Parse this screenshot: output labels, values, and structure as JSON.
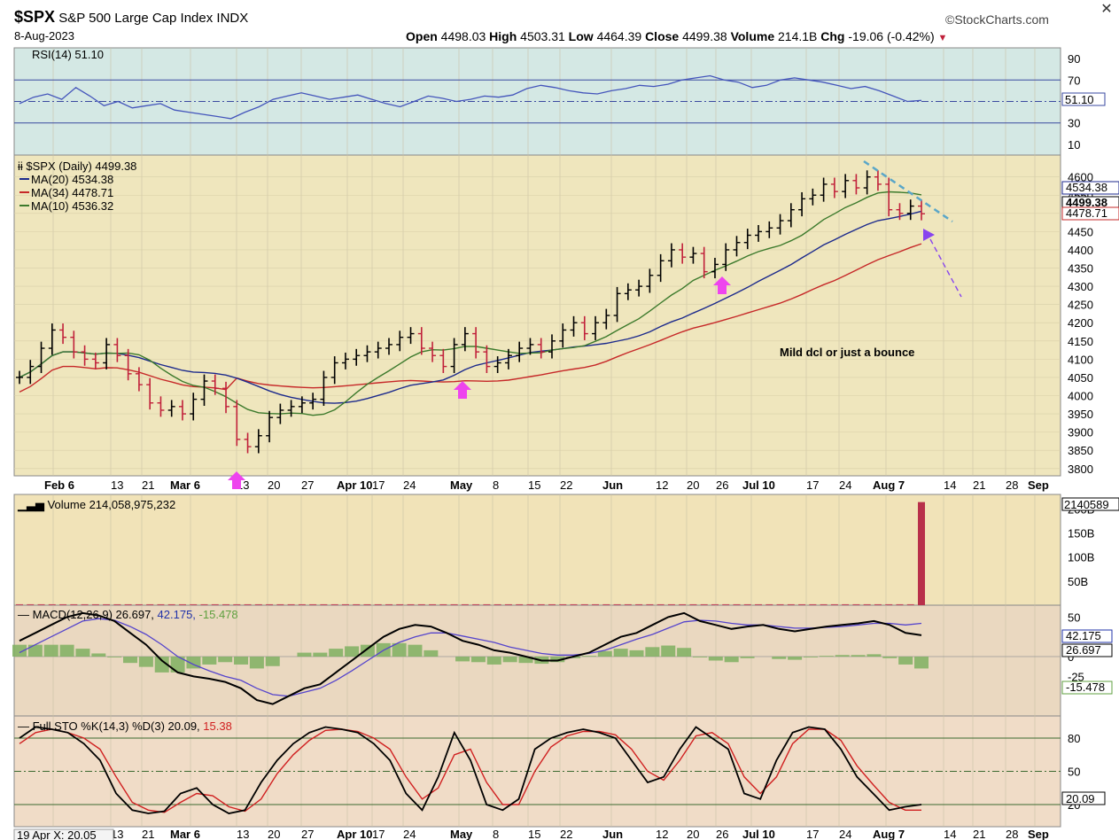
{
  "header": {
    "symbol": "$SPX",
    "name": "S&P 500 Large Cap Index",
    "exchange": "INDX",
    "date": "8-Aug-2023",
    "brand": "©StockCharts.com",
    "open_label": "Open",
    "open": "4498.03",
    "high_label": "High",
    "high": "4503.31",
    "low_label": "Low",
    "low": "4464.39",
    "close_label": "Close",
    "close": "4499.38",
    "volume_label": "Volume",
    "volume": "214.1B",
    "chg_label": "Chg",
    "chg": "-19.06 (-0.42%)",
    "close_icon": "close-circle-icon"
  },
  "colors": {
    "up": "#000000",
    "down": "#c0203a",
    "ma20": "#1c2a8c",
    "ma34": "#c62828",
    "ma10": "#3c7a2c",
    "rsi_bg": "#d4e8e4",
    "price_bg": "#efe6bd",
    "volume_bg": "#f1e3b8",
    "macd_bg": "#ead8c0",
    "sto_bg": "#f0dcc7",
    "annotation": "#5aa6c8",
    "arrow_magenta": "#ee44ee",
    "arrow_purple": "#8844ee"
  },
  "chart_data": [
    {
      "type": "line",
      "panel": "RSI",
      "title": "RSI(14) 51.10",
      "yticks": [
        "90",
        "70",
        "50",
        "30",
        "10"
      ],
      "ylim": [
        0,
        100
      ],
      "reference_lines": [
        70,
        30
      ],
      "last_value_label": "51.10",
      "series": [
        {
          "name": "RSI(14)",
          "values": [
            48,
            54,
            57,
            52,
            63,
            55,
            46,
            50,
            44,
            46,
            48,
            42,
            40,
            38,
            36,
            34,
            40,
            45,
            52,
            55,
            58,
            55,
            52,
            54,
            56,
            52,
            48,
            45,
            50,
            55,
            53,
            50,
            52,
            55,
            54,
            56,
            62,
            65,
            63,
            60,
            58,
            57,
            60,
            62,
            65,
            64,
            66,
            70,
            72,
            74,
            70,
            68,
            63,
            65,
            70,
            72,
            70,
            68,
            65,
            62,
            64,
            60,
            55,
            50,
            51
          ]
        }
      ]
    },
    {
      "type": "candlestick",
      "panel": "Price",
      "title": "$SPX (Daily) 4499.38",
      "legend": [
        "MA(20) 4534.38",
        "MA(34) 4478.71",
        "MA(10) 4536.32"
      ],
      "x_tick_labels": [
        "Feb 6",
        "13",
        "21",
        "Mar 6",
        "13",
        "20",
        "27",
        "Apr 10",
        "17",
        "24",
        "May",
        "8",
        "15",
        "22",
        "Jun",
        "12",
        "20",
        "26",
        "Jul 10",
        "17",
        "24",
        "Aug 7",
        "14",
        "21",
        "28",
        "Sep"
      ],
      "yticks": [
        "4600",
        "4550",
        "4500",
        "4450",
        "4400",
        "4350",
        "4300",
        "4250",
        "4200",
        "4150",
        "4100",
        "4050",
        "4000",
        "3950",
        "3900",
        "3850",
        "3800"
      ],
      "ylim": [
        3780,
        4660
      ],
      "right_labels": [
        "4534.38",
        "4499.38",
        "4478.71"
      ],
      "closes": [
        4050,
        4080,
        4130,
        4180,
        4160,
        4120,
        4100,
        4090,
        4140,
        4110,
        4060,
        4030,
        3980,
        3960,
        3970,
        3950,
        3990,
        4040,
        4020,
        3970,
        3880,
        3860,
        3890,
        3940,
        3960,
        3970,
        3980,
        3990,
        4050,
        4090,
        4100,
        4110,
        4120,
        4130,
        4140,
        4160,
        4170,
        4130,
        4110,
        4080,
        4140,
        4170,
        4120,
        4080,
        4090,
        4110,
        4130,
        4140,
        4120,
        4150,
        4180,
        4200,
        4170,
        4200,
        4220,
        4280,
        4290,
        4300,
        4330,
        4370,
        4400,
        4380,
        4390,
        4340,
        4360,
        4400,
        4420,
        4440,
        4450,
        4460,
        4480,
        4510,
        4540,
        4550,
        4580,
        4560,
        4590,
        4570,
        4600,
        4580,
        4510,
        4500,
        4520,
        4499
      ]
    },
    {
      "type": "bar",
      "panel": "Volume",
      "title": "Volume 214,058,975,232",
      "yticks": [
        "200B",
        "150B",
        "100B",
        "50B"
      ],
      "last_label": "2140589",
      "values_billion": [
        2,
        2,
        2,
        2,
        2,
        2,
        2,
        2,
        2,
        2,
        2,
        2,
        2,
        2,
        2,
        2,
        2,
        2,
        2,
        2,
        2,
        2,
        2,
        2,
        2,
        2,
        2,
        2,
        2,
        2,
        2,
        2,
        2,
        2,
        2,
        2,
        2,
        2,
        2,
        2,
        2,
        2,
        2,
        2,
        2,
        2,
        2,
        2,
        2,
        2,
        2,
        2,
        2,
        2,
        2,
        2,
        2,
        2,
        2,
        2,
        2,
        2,
        2,
        2,
        2,
        2,
        2,
        2,
        2,
        2,
        2,
        2,
        2,
        2,
        2,
        2,
        2,
        2,
        2,
        2,
        2,
        2,
        2,
        214.1
      ]
    },
    {
      "type": "line",
      "panel": "MACD",
      "title": "MACD(12,26,9)",
      "values_text": [
        "26.697",
        "42.175",
        "-15.478"
      ],
      "yticks": [
        "50",
        "0",
        "-25"
      ],
      "right_labels": [
        "42.175",
        "26.697",
        "-15.478"
      ],
      "series": [
        {
          "name": "MACD",
          "values": [
            20,
            30,
            40,
            50,
            55,
            52,
            45,
            30,
            15,
            -5,
            -20,
            -25,
            -28,
            -32,
            -40,
            -55,
            -60,
            -50,
            -40,
            -35,
            -20,
            -5,
            10,
            25,
            35,
            40,
            38,
            30,
            20,
            15,
            8,
            5,
            0,
            -5,
            -5,
            0,
            5,
            15,
            25,
            30,
            40,
            50,
            55,
            45,
            40,
            35,
            38,
            40,
            35,
            32,
            35,
            38,
            40,
            42,
            45,
            40,
            30,
            27
          ]
        },
        {
          "name": "Signal",
          "values": [
            5,
            15,
            25,
            35,
            45,
            48,
            46,
            38,
            28,
            15,
            0,
            -10,
            -18,
            -25,
            -30,
            -40,
            -48,
            -50,
            -45,
            -40,
            -30,
            -18,
            -5,
            8,
            18,
            25,
            30,
            30,
            26,
            22,
            18,
            12,
            8,
            4,
            2,
            2,
            4,
            8,
            15,
            22,
            28,
            36,
            44,
            46,
            45,
            42,
            40,
            40,
            38,
            36,
            36,
            37,
            38,
            40,
            42,
            42,
            40,
            42
          ]
        },
        {
          "name": "Histogram",
          "values": [
            15,
            15,
            15,
            15,
            10,
            4,
            -1,
            -8,
            -13,
            -20,
            -20,
            -15,
            -10,
            -7,
            -10,
            -15,
            -12,
            0,
            5,
            5,
            10,
            13,
            15,
            17,
            17,
            15,
            8,
            0,
            -6,
            -7,
            -10,
            -7,
            -8,
            -9,
            -7,
            -2,
            1,
            7,
            10,
            8,
            12,
            14,
            11,
            -1,
            -5,
            -7,
            -2,
            0,
            -3,
            -4,
            -1,
            1,
            2,
            2,
            3,
            -2,
            -10,
            -15
          ]
        }
      ]
    },
    {
      "type": "line",
      "panel": "Stochastic",
      "title": "Full STO %K(14,3) %D(3) 20.09,",
      "d_value": "15.38",
      "yticks": [
        "80",
        "50",
        "20"
      ],
      "ylim": [
        0,
        100
      ],
      "right_label": "20.09",
      "series": [
        {
          "name": "%K",
          "values": [
            80,
            90,
            88,
            85,
            75,
            60,
            30,
            15,
            12,
            14,
            30,
            35,
            20,
            12,
            15,
            40,
            60,
            75,
            85,
            90,
            88,
            85,
            75,
            60,
            30,
            15,
            45,
            85,
            60,
            20,
            15,
            25,
            70,
            80,
            85,
            88,
            85,
            80,
            60,
            40,
            45,
            70,
            90,
            80,
            70,
            30,
            25,
            60,
            85,
            90,
            88,
            70,
            45,
            30,
            15,
            18,
            20
          ]
        },
        {
          "name": "%D",
          "values": [
            75,
            85,
            88,
            85,
            80,
            70,
            45,
            22,
            15,
            13,
            22,
            30,
            28,
            18,
            14,
            25,
            48,
            65,
            78,
            87,
            88,
            86,
            80,
            70,
            45,
            25,
            35,
            65,
            70,
            40,
            20,
            20,
            50,
            72,
            82,
            86,
            86,
            83,
            70,
            50,
            42,
            60,
            82,
            85,
            75,
            45,
            30,
            45,
            75,
            88,
            88,
            78,
            55,
            38,
            22,
            15,
            15
          ]
        }
      ]
    }
  ],
  "annotation": {
    "text": "Mild dcl or just a bounce"
  },
  "footer_hover": "19 Apr X: 20.05"
}
